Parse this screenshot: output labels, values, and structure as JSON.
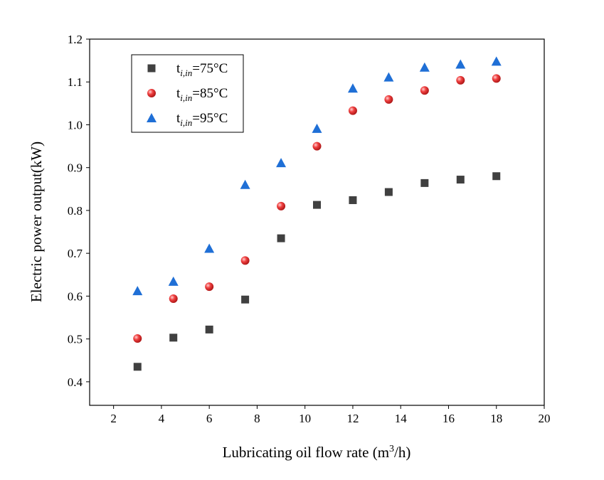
{
  "chart_data": {
    "type": "scatter",
    "title": "",
    "xlabel": "Lubricating oil flow rate (m",
    "xlabel_sup": "3",
    "xlabel_end": "/h)",
    "ylabel": "Electric power output(kW)",
    "xlim": [
      1,
      20
    ],
    "ylim": [
      0.345,
      1.2
    ],
    "xticks": [
      2,
      4,
      6,
      8,
      10,
      12,
      14,
      16,
      18,
      20
    ],
    "yticks": [
      0.4,
      0.5,
      0.6,
      0.7,
      0.8,
      0.9,
      1.0,
      1.1,
      1.2
    ],
    "x": [
      3,
      4.5,
      6,
      7.5,
      9,
      10.5,
      12,
      13.5,
      15,
      16.5,
      18
    ],
    "legend_position": "top-left",
    "series": [
      {
        "name": "ti,in=75°C",
        "label_main": "t",
        "label_sub": "i,in",
        "label_rest": "=75°C",
        "marker": "square",
        "color": "#404040",
        "values": [
          0.435,
          0.503,
          0.522,
          0.592,
          0.735,
          0.813,
          0.824,
          0.843,
          0.864,
          0.872,
          0.88
        ]
      },
      {
        "name": "ti,in=85°C",
        "label_main": "t",
        "label_sub": "i,in",
        "label_rest": "=85°C",
        "marker": "circle",
        "color": "#e83030",
        "values": [
          0.501,
          0.594,
          0.622,
          0.683,
          0.81,
          0.95,
          1.033,
          1.059,
          1.08,
          1.104,
          1.108
        ]
      },
      {
        "name": "ti,in=95°C",
        "label_main": "t",
        "label_sub": "i,in",
        "label_rest": "=95°C",
        "marker": "triangle",
        "color": "#1f6fd6",
        "values": [
          0.612,
          0.634,
          0.711,
          0.86,
          0.911,
          0.991,
          1.085,
          1.111,
          1.134,
          1.141,
          1.148
        ]
      }
    ]
  }
}
